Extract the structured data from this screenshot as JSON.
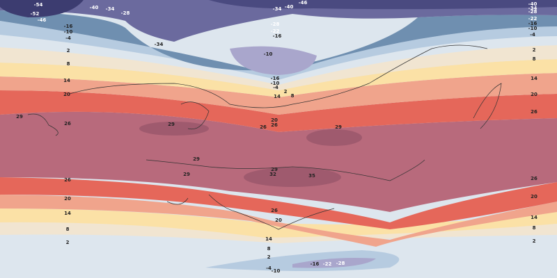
{
  "map": {
    "contour_labels": [
      "-54",
      "-40",
      "-34",
      "-28",
      "-52",
      "-46",
      "-34",
      "-40",
      "-46",
      "-40",
      "-34",
      "-28",
      "-22",
      "-16",
      "-10",
      "-4",
      "-28",
      "-22",
      "-16",
      "-34",
      "-10",
      "-16",
      "-10",
      "-4",
      "2",
      "8",
      "14",
      "-16",
      "-10",
      "-4",
      "2",
      "8",
      "14",
      "20",
      "29",
      "26",
      "29",
      "20",
      "26",
      "26",
      "29",
      "2",
      "8",
      "14",
      "20",
      "26",
      "29",
      "29",
      "29",
      "32",
      "35",
      "26",
      "20",
      "14",
      "8",
      "2",
      "26",
      "20",
      "14",
      "8",
      "2",
      "26",
      "20",
      "14",
      "8",
      "2",
      "-4",
      "-10",
      "-16",
      "-22",
      "-28"
    ]
  }
}
